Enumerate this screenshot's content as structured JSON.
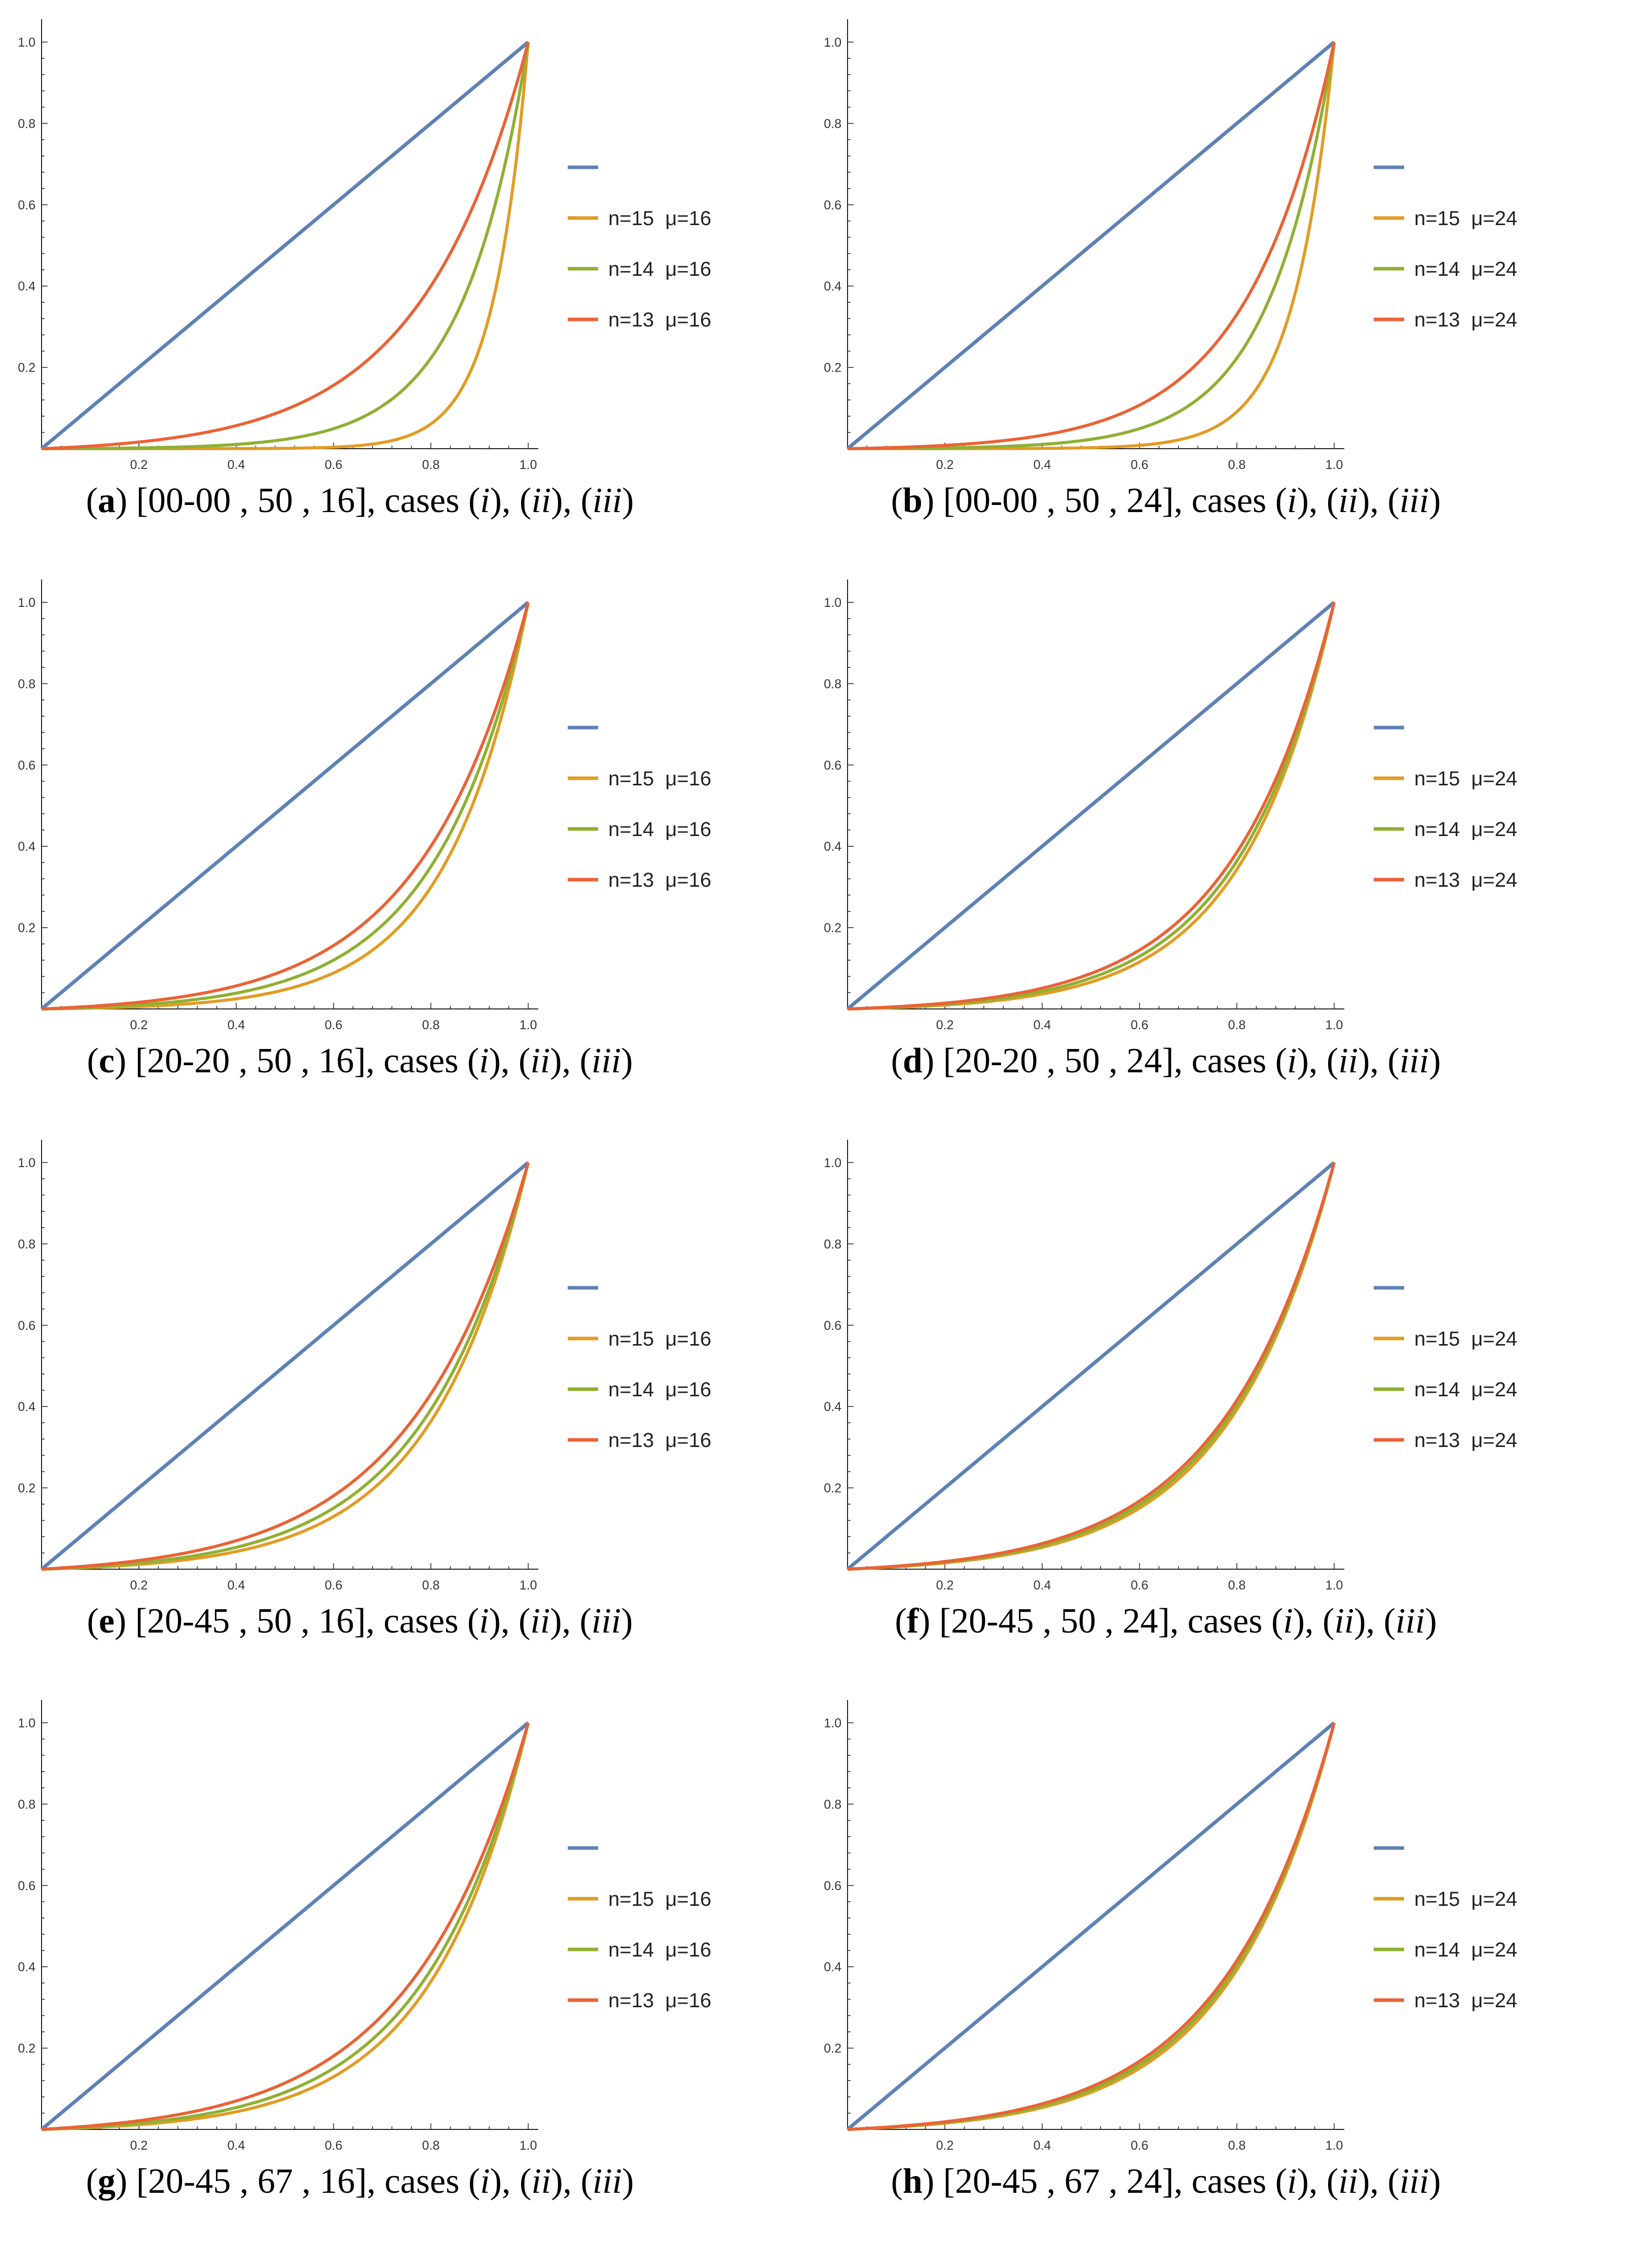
{
  "colors": {
    "diag": "#5E81B5",
    "c1": "#E19C24",
    "c2": "#8FB032",
    "c3": "#EB6235",
    "axis": "#222222"
  },
  "chart_data": [
    {
      "id": "a",
      "type": "line",
      "caption": {
        "letter": "a",
        "text": "[00-00 , 50 , 16], cases"
      },
      "xlim": [
        0,
        1
      ],
      "ylim": [
        0,
        1
      ],
      "xticks": [
        "0.2",
        "0.4",
        "0.6",
        "0.8",
        "1.0"
      ],
      "yticks": [
        "0.2",
        "0.4",
        "0.6",
        "0.8",
        "1.0"
      ],
      "series": [
        {
          "name": "",
          "color": "diag",
          "k": 0
        },
        {
          "name": "n=15  μ=16",
          "color": "c1",
          "k": 14
        },
        {
          "name": "n=14  μ=16",
          "color": "c2",
          "k": 7.5
        },
        {
          "name": "n=13  μ=16",
          "color": "c3",
          "k": 4.5
        }
      ]
    },
    {
      "id": "b",
      "type": "line",
      "caption": {
        "letter": "b",
        "text": "[00-00 , 50 , 24], cases"
      },
      "xlim": [
        0,
        1
      ],
      "ylim": [
        0,
        1
      ],
      "xticks": [
        "0.2",
        "0.4",
        "0.6",
        "0.8",
        "1.0"
      ],
      "yticks": [
        "0.2",
        "0.4",
        "0.6",
        "0.8",
        "1.0"
      ],
      "series": [
        {
          "name": "",
          "color": "diag",
          "k": 0
        },
        {
          "name": "n=15  μ=24",
          "color": "c1",
          "k": 12
        },
        {
          "name": "n=14  μ=24",
          "color": "c2",
          "k": 7.5
        },
        {
          "name": "n=13  μ=24",
          "color": "c3",
          "k": 5.5
        }
      ]
    },
    {
      "id": "c",
      "type": "line",
      "caption": {
        "letter": "c",
        "text": "[20-20 , 50 , 16], cases"
      },
      "xlim": [
        0,
        1
      ],
      "ylim": [
        0,
        1
      ],
      "xticks": [
        "0.2",
        "0.4",
        "0.6",
        "0.8",
        "1.0"
      ],
      "yticks": [
        "0.2",
        "0.4",
        "0.6",
        "0.8",
        "1.0"
      ],
      "series": [
        {
          "name": "",
          "color": "diag",
          "k": 0
        },
        {
          "name": "n=15  μ=16",
          "color": "c1",
          "k": 6
        },
        {
          "name": "n=14  μ=16",
          "color": "c2",
          "k": 5.2
        },
        {
          "name": "n=13  μ=16",
          "color": "c3",
          "k": 4.5
        }
      ]
    },
    {
      "id": "d",
      "type": "line",
      "caption": {
        "letter": "d",
        "text": "[20-20 , 50 , 24], cases"
      },
      "xlim": [
        0,
        1
      ],
      "ylim": [
        0,
        1
      ],
      "xticks": [
        "0.2",
        "0.4",
        "0.6",
        "0.8",
        "1.0"
      ],
      "yticks": [
        "0.2",
        "0.4",
        "0.6",
        "0.8",
        "1.0"
      ],
      "series": [
        {
          "name": "",
          "color": "diag",
          "k": 0
        },
        {
          "name": "n=15  μ=24",
          "color": "c1",
          "k": 5.3
        },
        {
          "name": "n=14  μ=24",
          "color": "c2",
          "k": 5.0
        },
        {
          "name": "n=13  μ=24",
          "color": "c3",
          "k": 4.7
        }
      ]
    },
    {
      "id": "e",
      "type": "line",
      "caption": {
        "letter": "e",
        "text": "[20-45 , 50 , 16], cases"
      },
      "xlim": [
        0,
        1
      ],
      "ylim": [
        0,
        1
      ],
      "xticks": [
        "0.2",
        "0.4",
        "0.6",
        "0.8",
        "1.0"
      ],
      "yticks": [
        "0.2",
        "0.4",
        "0.6",
        "0.8",
        "1.0"
      ],
      "series": [
        {
          "name": "",
          "color": "diag",
          "k": 0
        },
        {
          "name": "n=15  μ=16",
          "color": "c1",
          "k": 5.0
        },
        {
          "name": "n=14  μ=16",
          "color": "c2",
          "k": 4.6
        },
        {
          "name": "n=13  μ=16",
          "color": "c3",
          "k": 4.1
        }
      ]
    },
    {
      "id": "f",
      "type": "line",
      "caption": {
        "letter": "f",
        "text": "[20-45 , 50 , 24], cases"
      },
      "xlim": [
        0,
        1
      ],
      "ylim": [
        0,
        1
      ],
      "xticks": [
        "0.2",
        "0.4",
        "0.6",
        "0.8",
        "1.0"
      ],
      "yticks": [
        "0.2",
        "0.4",
        "0.6",
        "0.8",
        "1.0"
      ],
      "series": [
        {
          "name": "",
          "color": "diag",
          "k": 0
        },
        {
          "name": "n=15  μ=24",
          "color": "c1",
          "k": 4.6
        },
        {
          "name": "n=14  μ=24",
          "color": "c2",
          "k": 4.45
        },
        {
          "name": "n=13  μ=24",
          "color": "c3",
          "k": 4.3
        }
      ]
    },
    {
      "id": "g",
      "type": "line",
      "caption": {
        "letter": "g",
        "text": "[20-45 , 67 , 16], cases"
      },
      "xlim": [
        0,
        1
      ],
      "ylim": [
        0,
        1
      ],
      "xticks": [
        "0.2",
        "0.4",
        "0.6",
        "0.8",
        "1.0"
      ],
      "yticks": [
        "0.2",
        "0.4",
        "0.6",
        "0.8",
        "1.0"
      ],
      "series": [
        {
          "name": "",
          "color": "diag",
          "k": 0
        },
        {
          "name": "n=15  μ=16",
          "color": "c1",
          "k": 5.0
        },
        {
          "name": "n=14  μ=16",
          "color": "c2",
          "k": 4.6
        },
        {
          "name": "n=13  μ=16",
          "color": "c3",
          "k": 4.1
        }
      ]
    },
    {
      "id": "h",
      "type": "line",
      "caption": {
        "letter": "h",
        "text": "[20-45 , 67 , 24], cases"
      },
      "xlim": [
        0,
        1
      ],
      "ylim": [
        0,
        1
      ],
      "xticks": [
        "0.2",
        "0.4",
        "0.6",
        "0.8",
        "1.0"
      ],
      "yticks": [
        "0.2",
        "0.4",
        "0.6",
        "0.8",
        "1.0"
      ],
      "series": [
        {
          "name": "",
          "color": "diag",
          "k": 0
        },
        {
          "name": "n=15  μ=24",
          "color": "c1",
          "k": 4.6
        },
        {
          "name": "n=14  μ=24",
          "color": "c2",
          "k": 4.45
        },
        {
          "name": "n=13  μ=24",
          "color": "c3",
          "k": 4.3
        }
      ]
    }
  ]
}
